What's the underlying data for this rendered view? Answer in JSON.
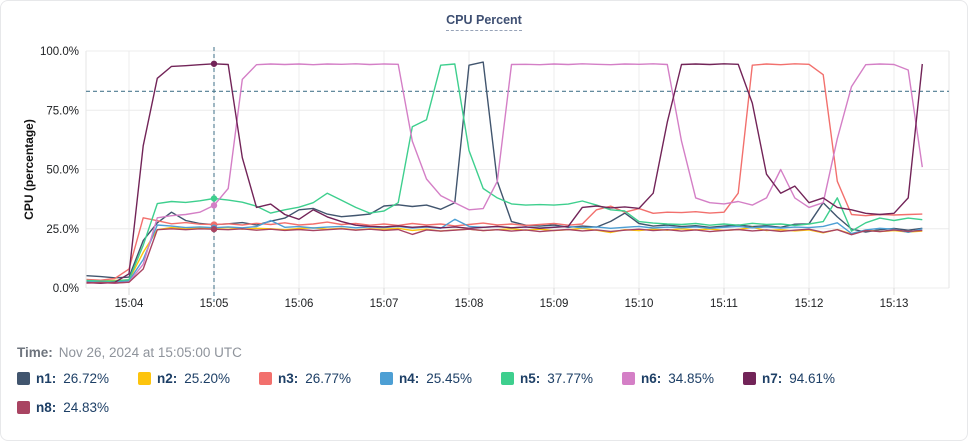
{
  "title": "CPU Percent",
  "time_row": {
    "label": "Time:",
    "value": "Nov 26, 2024 at 15:05:00 UTC"
  },
  "legend": {
    "items": [
      {
        "label": "n1:",
        "value": "26.72%",
        "color": "#41556e"
      },
      {
        "label": "n2:",
        "value": "25.20%",
        "color": "#fdc40d"
      },
      {
        "label": "n3:",
        "value": "26.77%",
        "color": "#f2706d"
      },
      {
        "label": "n4:",
        "value": "25.45%",
        "color": "#4d9fd4"
      },
      {
        "label": "n5:",
        "value": "37.77%",
        "color": "#3ecf8e"
      },
      {
        "label": "n6:",
        "value": "34.85%",
        "color": "#d47fc6"
      },
      {
        "label": "n7:",
        "value": "94.61%",
        "color": "#722458"
      },
      {
        "label": "n8:",
        "value": "24.83%",
        "color": "#a94462"
      }
    ]
  },
  "chart_data": {
    "type": "line",
    "title": "CPU Percent",
    "ylabel": "CPU (percentage)",
    "y_ticks": [
      "0.0%",
      "25.0%",
      "50.0%",
      "75.0%",
      "100.0%"
    ],
    "ylim": [
      0,
      100
    ],
    "x_ticks": [
      "15:04",
      "15:05",
      "15:06",
      "15:07",
      "15:08",
      "15:09",
      "15:10",
      "15:11",
      "15:12",
      "15:13"
    ],
    "x_tick_interval_seconds": 60,
    "x_start": "15:03:30",
    "x_step_seconds": 10,
    "seconds_before_first_tick": 30,
    "grid": true,
    "threshold_percent": 83,
    "crosshair_index": 9,
    "crosshair_time": "15:05:00",
    "legend_position": "bottom",
    "colors": {
      "grid": "#ececec",
      "boundary": "#e6e6e6",
      "tick": "#d8d8d8",
      "axis_text": "#1c1e21",
      "crosshair": "#4e7b91"
    },
    "series": [
      {
        "name": "n1",
        "color": "#41556e",
        "values": [
          5.2,
          4.8,
          4.3,
          4.6,
          20,
          27.5,
          32,
          28.5,
          27.2,
          26.72,
          27.1,
          27.6,
          26.6,
          28.2,
          29.5,
          33,
          33.6,
          31.2,
          30.1,
          30.6,
          31.2,
          34.6,
          35.1,
          34.4,
          35,
          33.2,
          36,
          94,
          95.3,
          45,
          28,
          26.5,
          26.1,
          26.6,
          25.6,
          26.1,
          25.7,
          28.1,
          31.6,
          27.2,
          26.1,
          26.6,
          25.9,
          26.3,
          25.6,
          26.1,
          26.6,
          25.9,
          26.3,
          25.6,
          26.9,
          27.1,
          36,
          30,
          24.9,
          23.6,
          24.6,
          25.1,
          24.4,
          25.2
        ]
      },
      {
        "name": "n2",
        "color": "#fdc40d",
        "values": [
          3.1,
          3.0,
          3.2,
          3.4,
          15,
          24.6,
          25.5,
          25.0,
          25.3,
          25.2,
          25.5,
          24.8,
          25.2,
          25.0,
          24.6,
          25.1,
          25.4,
          24.8,
          25.2,
          24.5,
          25.0,
          24.8,
          25.2,
          24.3,
          24.8,
          24.0,
          24.5,
          24.8,
          24.2,
          24.6,
          25.0,
          24.4,
          24.8,
          24.2,
          24.6,
          25.2,
          24.4,
          23.4,
          24.6,
          24.2,
          24.8,
          24.4,
          25.0,
          24.5,
          24.9,
          24.3,
          24.7,
          25.6,
          24.2,
          24.6,
          24.1,
          24.5,
          23.3,
          24.7,
          22.8,
          24.4,
          23.8,
          24.2,
          23.6,
          24.0
        ]
      },
      {
        "name": "n3",
        "color": "#f2706d",
        "values": [
          3.6,
          3.3,
          4.0,
          8.0,
          29.6,
          28.4,
          27.1,
          27.6,
          26.9,
          26.77,
          27.1,
          26.6,
          27.3,
          26.8,
          27.5,
          26.6,
          27.0,
          27.8,
          26.8,
          27.2,
          26.5,
          27.0,
          26.4,
          27.2,
          26.6,
          27.0,
          26.2,
          26.8,
          27.4,
          26.6,
          27.0,
          26.4,
          26.8,
          27.2,
          26.5,
          27.0,
          33.0,
          34.5,
          32.0,
          33.5,
          31.5,
          32.0,
          31.8,
          32.2,
          31.6,
          32.0,
          40.0,
          94.0,
          94.5,
          94.2,
          94.6,
          94.4,
          90.0,
          45.0,
          31.0,
          30.5,
          31.0,
          30.8,
          31.0,
          31.2
        ]
      },
      {
        "name": "n4",
        "color": "#4d9fd4",
        "values": [
          2.6,
          2.8,
          2.5,
          3.0,
          12,
          26.6,
          26.1,
          25.5,
          25.8,
          25.45,
          25.8,
          25.4,
          25.9,
          28.5,
          25.6,
          25.9,
          25.3,
          25.7,
          26.0,
          25.4,
          25.8,
          25.5,
          26.0,
          25.3,
          25.7,
          25.2,
          29.0,
          26.0,
          25.6,
          25.9,
          25.4,
          25.8,
          25.3,
          25.7,
          26.0,
          25.4,
          25.8,
          25.2,
          25.6,
          26.0,
          25.3,
          25.7,
          25.4,
          25.8,
          25.2,
          25.6,
          26.0,
          25.4,
          25.8,
          25.3,
          25.7,
          25.5,
          26.0,
          27.5,
          23.0,
          24.5,
          25.2,
          24.8,
          23.5,
          25.0
        ]
      },
      {
        "name": "n5",
        "color": "#3ecf8e",
        "values": [
          3.2,
          2.9,
          3.0,
          3.5,
          18,
          35.6,
          36.5,
          36.1,
          36.8,
          37.77,
          37.1,
          36.2,
          34.5,
          31.6,
          33.0,
          34.1,
          36.0,
          40.0,
          37.0,
          34.0,
          31.6,
          32.5,
          36.0,
          68.0,
          71.0,
          94.0,
          94.5,
          58.0,
          42.0,
          38.0,
          35.5,
          35.0,
          35.2,
          35.0,
          35.4,
          36.7,
          35.0,
          33.0,
          32.5,
          28.0,
          27.4,
          27.0,
          26.8,
          27.2,
          26.5,
          27.0,
          26.5,
          27.3,
          26.8,
          27.0,
          26.4,
          27.0,
          28.0,
          38.0,
          24.0,
          27.5,
          29.5,
          28.5,
          29.5,
          28.8
        ]
      },
      {
        "name": "n6",
        "color": "#d47fc6",
        "values": [
          2.1,
          2.2,
          2.0,
          2.5,
          10,
          29.6,
          30.5,
          31.0,
          32.0,
          34.85,
          42.0,
          88.0,
          94.2,
          94.5,
          94.3,
          94.5,
          94.2,
          94.5,
          94.4,
          94.6,
          94.3,
          94.5,
          94.4,
          62.0,
          46.0,
          39.0,
          36.0,
          33.0,
          33.5,
          45.0,
          94.3,
          94.4,
          94.2,
          94.5,
          94.3,
          94.6,
          94.4,
          94.2,
          94.5,
          94.4,
          94.6,
          94.3,
          62.0,
          38.0,
          36.0,
          35.5,
          36.5,
          35.0,
          38.0,
          50.0,
          38.0,
          34.0,
          36.0,
          63.0,
          85.0,
          94.2,
          94.5,
          94.3,
          92.0,
          51.0
        ]
      },
      {
        "name": "n7",
        "color": "#722458",
        "values": [
          2.3,
          2.0,
          2.4,
          6.0,
          60,
          88.5,
          93.5,
          93.8,
          94.2,
          94.61,
          94.3,
          55.0,
          34.0,
          35.4,
          31.0,
          29.0,
          33.0,
          30.0,
          28.0,
          26.5,
          26.0,
          25.8,
          26.2,
          25.6,
          26.0,
          25.4,
          25.8,
          25.2,
          25.6,
          26.0,
          25.4,
          25.8,
          25.2,
          25.6,
          26.0,
          34.0,
          34.6,
          33.8,
          34.2,
          33.6,
          40.0,
          70.0,
          94.3,
          94.5,
          94.3,
          94.6,
          94.4,
          78.0,
          48.0,
          40.0,
          43.0,
          36.0,
          38.0,
          34.0,
          33.0,
          31.5,
          31.0,
          31.5,
          38.0,
          94.5
        ]
      },
      {
        "name": "n8",
        "color": "#a94462",
        "values": [
          2.1,
          2.3,
          2.1,
          2.4,
          8.0,
          24.6,
          25.0,
          24.6,
          25.0,
          24.83,
          24.6,
          25.0,
          24.4,
          24.8,
          24.3,
          24.7,
          24.2,
          24.6,
          25.0,
          24.4,
          24.8,
          24.3,
          24.7,
          22.6,
          24.5,
          24.0,
          24.4,
          24.8,
          24.2,
          24.6,
          24.0,
          24.5,
          23.8,
          24.3,
          24.7,
          24.1,
          24.5,
          23.9,
          24.4,
          24.8,
          24.2,
          24.6,
          24.0,
          24.5,
          23.8,
          24.3,
          24.7,
          24.1,
          24.5,
          23.9,
          24.4,
          24.8,
          23.5,
          24.6,
          22.5,
          24.2,
          23.8,
          24.5,
          23.9,
          24.3
        ]
      }
    ]
  }
}
